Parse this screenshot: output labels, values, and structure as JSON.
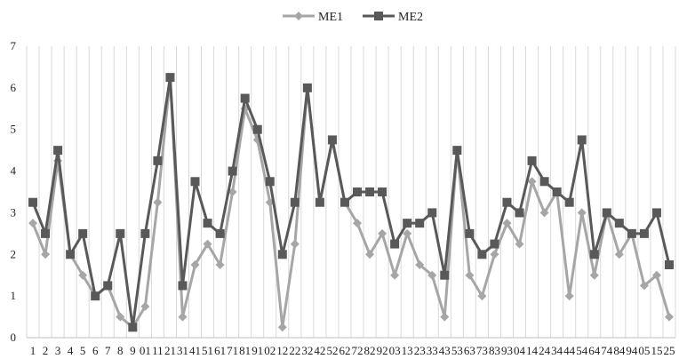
{
  "chart_data": {
    "type": "line",
    "title": "",
    "xlabel": "",
    "ylabel": "",
    "ylim": [
      0,
      7
    ],
    "yticks": [
      "0",
      "1",
      "2",
      "3",
      "4",
      "5",
      "6",
      "7"
    ],
    "grid": "vertical",
    "legend_position": "top-center",
    "categories": [
      "1",
      "2",
      "3",
      "4",
      "5",
      "6",
      "7",
      "8",
      "9",
      "01",
      "11",
      "21",
      "31",
      "41",
      "51",
      "61",
      "71",
      "81",
      "91",
      "02",
      "12",
      "22",
      "32",
      "42",
      "52",
      "62",
      "72",
      "82",
      "92",
      "03",
      "13",
      "23",
      "33",
      "43",
      "53",
      "63",
      "73",
      "83",
      "93",
      "04",
      "14",
      "24",
      "34",
      "44",
      "54",
      "64",
      "74",
      "84",
      "94",
      "05",
      "15",
      "25"
    ],
    "series": [
      {
        "name": "ME1",
        "color": "#a6a6a6",
        "marker": "diamond",
        "values": [
          2.75,
          2.0,
          4.25,
          2.0,
          1.5,
          1.0,
          1.25,
          0.5,
          0.25,
          0.75,
          3.25,
          6.25,
          0.5,
          1.75,
          2.25,
          1.75,
          3.5,
          5.5,
          4.75,
          3.25,
          0.25,
          2.25,
          6.0,
          3.25,
          4.75,
          3.25,
          2.75,
          2.0,
          2.5,
          1.5,
          2.5,
          1.75,
          1.5,
          0.5,
          4.5,
          1.5,
          1.0,
          2.0,
          2.75,
          2.25,
          3.75,
          3.0,
          3.5,
          1.0,
          3.0,
          1.5,
          3.0,
          2.0,
          2.5,
          1.25,
          1.5,
          0.5
        ]
      },
      {
        "name": "ME2",
        "color": "#595959",
        "marker": "square",
        "values": [
          3.25,
          2.5,
          4.5,
          2.0,
          2.5,
          1.0,
          1.25,
          2.5,
          0.25,
          2.5,
          4.25,
          6.25,
          1.25,
          3.75,
          2.75,
          2.5,
          4.0,
          5.75,
          5.0,
          3.75,
          2.0,
          3.25,
          6.0,
          3.25,
          4.75,
          3.25,
          3.5,
          3.5,
          3.5,
          2.25,
          2.75,
          2.75,
          3.0,
          1.5,
          4.5,
          2.5,
          2.0,
          2.25,
          3.25,
          3.0,
          4.25,
          3.75,
          3.5,
          3.25,
          4.75,
          2.0,
          3.0,
          2.75,
          2.5,
          2.5,
          3.0,
          1.75
        ]
      }
    ]
  }
}
